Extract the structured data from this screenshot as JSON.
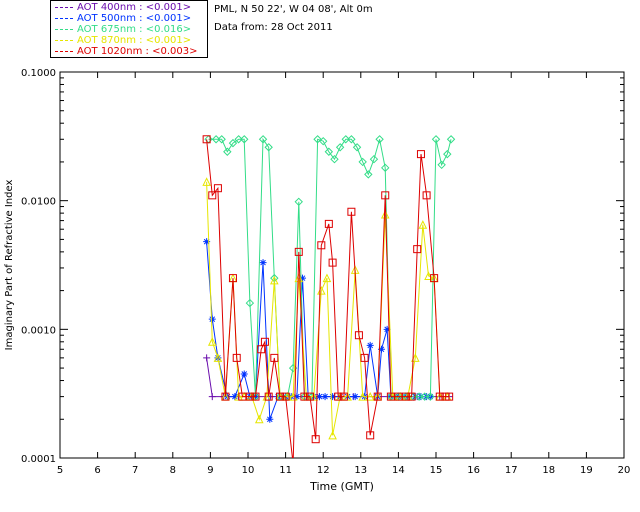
{
  "header": {
    "site": "PML, N 50 22', W 04 08', Alt 0m",
    "date": "Data from: 28 Oct 2011"
  },
  "legend": [
    {
      "label": "AOT  400nm : <0.001>",
      "color": "#6a0dad"
    },
    {
      "label": "AOT  500nm : <0.001>",
      "color": "#0033ff"
    },
    {
      "label": "AOT  675nm : <0.016>",
      "color": "#33dd88"
    },
    {
      "label": "AOT  870nm : <0.001>",
      "color": "#e6e600"
    },
    {
      "label": "AOT 1020nm : <0.003>",
      "color": "#dd0000"
    }
  ],
  "chart_data": {
    "type": "line",
    "xlabel": "Time (GMT)",
    "ylabel": "Imaginary Part of Refractive Index",
    "xlim": [
      5,
      20
    ],
    "ylim": [
      0.0001,
      0.1
    ],
    "yscale": "log",
    "xticks": [
      "5",
      "6",
      "7",
      "8",
      "9",
      "10",
      "11",
      "12",
      "13",
      "14",
      "15",
      "16",
      "17",
      "18",
      "19",
      "20"
    ],
    "yticks": [
      "0.0001",
      "0.0010",
      "0.0100",
      "0.1000"
    ],
    "series": [
      {
        "name": "AOT  400nm : <0.001>",
        "color": "#6a0dad",
        "marker": "plus",
        "points": [
          [
            8.9,
            0.0006
          ],
          [
            9.05,
            0.0003
          ],
          [
            9.35,
            0.0003
          ],
          [
            9.75,
            0.0003
          ],
          [
            10.1,
            0.0003
          ],
          [
            10.6,
            0.0003
          ],
          [
            11.1,
            0.0003
          ],
          [
            11.5,
            0.0003
          ],
          [
            11.9,
            0.0003
          ],
          [
            12.3,
            0.0003
          ],
          [
            12.8,
            0.0003
          ],
          [
            13.4,
            0.0003
          ],
          [
            13.9,
            0.0003
          ],
          [
            14.5,
            0.0003
          ],
          [
            15.1,
            0.0003
          ],
          [
            15.35,
            0.0003
          ]
        ]
      },
      {
        "name": "AOT  500nm : <0.001>",
        "color": "#0033ff",
        "marker": "star",
        "points": [
          [
            8.9,
            0.0048
          ],
          [
            9.05,
            0.0012
          ],
          [
            9.2,
            0.0006
          ],
          [
            9.45,
            0.0003
          ],
          [
            9.65,
            0.0003
          ],
          [
            9.9,
            0.00045
          ],
          [
            10.05,
            0.0003
          ],
          [
            10.2,
            0.0003
          ],
          [
            10.4,
            0.0033
          ],
          [
            10.58,
            0.0002
          ],
          [
            10.8,
            0.0003
          ],
          [
            11.0,
            0.0003
          ],
          [
            11.15,
            0.0003
          ],
          [
            11.3,
            0.0003
          ],
          [
            11.45,
            0.0025
          ],
          [
            11.6,
            0.0003
          ],
          [
            11.75,
            0.0003
          ],
          [
            11.9,
            0.0003
          ],
          [
            12.05,
            0.0003
          ],
          [
            12.25,
            0.0003
          ],
          [
            12.45,
            0.0003
          ],
          [
            12.65,
            0.0003
          ],
          [
            12.85,
            0.0003
          ],
          [
            13.1,
            0.0003
          ],
          [
            13.25,
            0.00075
          ],
          [
            13.45,
            0.0003
          ],
          [
            13.55,
            0.0007
          ],
          [
            13.7,
            0.001
          ],
          [
            13.8,
            0.0003
          ],
          [
            14.0,
            0.0003
          ],
          [
            14.2,
            0.0003
          ],
          [
            14.45,
            0.0003
          ],
          [
            14.6,
            0.0003
          ],
          [
            14.75,
            0.0003
          ],
          [
            14.85,
            0.0003
          ]
        ]
      },
      {
        "name": "AOT  675nm : <0.016>",
        "color": "#33dd88",
        "marker": "diamond",
        "points": [
          [
            8.95,
            0.03
          ],
          [
            9.15,
            0.03
          ],
          [
            9.3,
            0.03
          ],
          [
            9.45,
            0.024
          ],
          [
            9.6,
            0.028
          ],
          [
            9.75,
            0.03
          ],
          [
            9.9,
            0.03
          ],
          [
            10.05,
            0.0016
          ],
          [
            10.2,
            0.0003
          ],
          [
            10.4,
            0.03
          ],
          [
            10.55,
            0.026
          ],
          [
            10.7,
            0.0025
          ],
          [
            10.85,
            0.0003
          ],
          [
            11.05,
            0.0003
          ],
          [
            11.2,
            0.0005
          ],
          [
            11.35,
            0.0098
          ],
          [
            11.5,
            0.0003
          ],
          [
            11.7,
            0.0003
          ],
          [
            11.85,
            0.03
          ],
          [
            12.0,
            0.029
          ],
          [
            12.15,
            0.024
          ],
          [
            12.3,
            0.021
          ],
          [
            12.45,
            0.026
          ],
          [
            12.6,
            0.03
          ],
          [
            12.75,
            0.03
          ],
          [
            12.9,
            0.026
          ],
          [
            13.05,
            0.02
          ],
          [
            13.2,
            0.016
          ],
          [
            13.35,
            0.021
          ],
          [
            13.5,
            0.03
          ],
          [
            13.65,
            0.018
          ],
          [
            13.8,
            0.0003
          ],
          [
            14.0,
            0.0003
          ],
          [
            14.2,
            0.0003
          ],
          [
            14.4,
            0.0003
          ],
          [
            14.55,
            0.0003
          ],
          [
            14.7,
            0.0003
          ],
          [
            14.85,
            0.0003
          ],
          [
            15.0,
            0.03
          ],
          [
            15.15,
            0.019
          ],
          [
            15.3,
            0.023
          ],
          [
            15.4,
            0.03
          ]
        ]
      },
      {
        "name": "AOT  870nm : <0.001>",
        "color": "#e6e600",
        "marker": "triangle",
        "points": [
          [
            8.9,
            0.014
          ],
          [
            9.05,
            0.0008
          ],
          [
            9.2,
            0.0006
          ],
          [
            9.4,
            0.0003
          ],
          [
            9.6,
            0.0025
          ],
          [
            9.75,
            0.0003
          ],
          [
            9.9,
            0.0003
          ],
          [
            10.1,
            0.0003
          ],
          [
            10.3,
            0.0002
          ],
          [
            10.5,
            0.0003
          ],
          [
            10.7,
            0.0024
          ],
          [
            10.85,
            0.0003
          ],
          [
            11.05,
            0.0003
          ],
          [
            11.2,
            0.0003
          ],
          [
            11.35,
            0.0025
          ],
          [
            11.55,
            0.0003
          ],
          [
            11.75,
            0.0003
          ],
          [
            11.95,
            0.002
          ],
          [
            12.1,
            0.0025
          ],
          [
            12.25,
            0.00015
          ],
          [
            12.45,
            0.0003
          ],
          [
            12.65,
            0.0003
          ],
          [
            12.85,
            0.0029
          ],
          [
            13.05,
            0.0003
          ],
          [
            13.25,
            0.0003
          ],
          [
            13.45,
            0.0003
          ],
          [
            13.65,
            0.0078
          ],
          [
            13.85,
            0.0003
          ],
          [
            14.05,
            0.0003
          ],
          [
            14.25,
            0.0003
          ],
          [
            14.45,
            0.0006
          ],
          [
            14.65,
            0.0065
          ],
          [
            14.8,
            0.0026
          ],
          [
            14.95,
            0.0025
          ],
          [
            15.1,
            0.0003
          ],
          [
            15.3,
            0.0003
          ]
        ]
      },
      {
        "name": "AOT 1020nm : <0.003>",
        "color": "#dd0000",
        "marker": "square",
        "points": [
          [
            8.9,
            0.03
          ],
          [
            9.05,
            0.011
          ],
          [
            9.2,
            0.0125
          ],
          [
            9.4,
            0.0003
          ],
          [
            9.6,
            0.0025
          ],
          [
            9.7,
            0.0006
          ],
          [
            9.85,
            0.0003
          ],
          [
            10.05,
            0.0003
          ],
          [
            10.2,
            0.0003
          ],
          [
            10.35,
            0.0007
          ],
          [
            10.45,
            0.0008
          ],
          [
            10.55,
            0.0003
          ],
          [
            10.7,
            0.0006
          ],
          [
            10.85,
            0.0003
          ],
          [
            11.0,
            0.0003
          ],
          [
            11.2,
            9e-05
          ],
          [
            11.35,
            0.004
          ],
          [
            11.5,
            0.0003
          ],
          [
            11.65,
            0.0003
          ],
          [
            11.8,
            0.00014
          ],
          [
            11.95,
            0.0045
          ],
          [
            12.15,
            0.0066
          ],
          [
            12.25,
            0.0033
          ],
          [
            12.4,
            0.0003
          ],
          [
            12.55,
            0.0003
          ],
          [
            12.75,
            0.0082
          ],
          [
            12.95,
            0.0009
          ],
          [
            13.1,
            0.0006
          ],
          [
            13.25,
            0.00015
          ],
          [
            13.45,
            0.0003
          ],
          [
            13.65,
            0.011
          ],
          [
            13.8,
            0.0003
          ],
          [
            14.0,
            0.0003
          ],
          [
            14.2,
            0.0003
          ],
          [
            14.35,
            0.0003
          ],
          [
            14.5,
            0.0042
          ],
          [
            14.6,
            0.023
          ],
          [
            14.75,
            0.011
          ],
          [
            14.95,
            0.0025
          ],
          [
            15.1,
            0.0003
          ],
          [
            15.25,
            0.0003
          ],
          [
            15.35,
            0.0003
          ]
        ]
      }
    ]
  }
}
